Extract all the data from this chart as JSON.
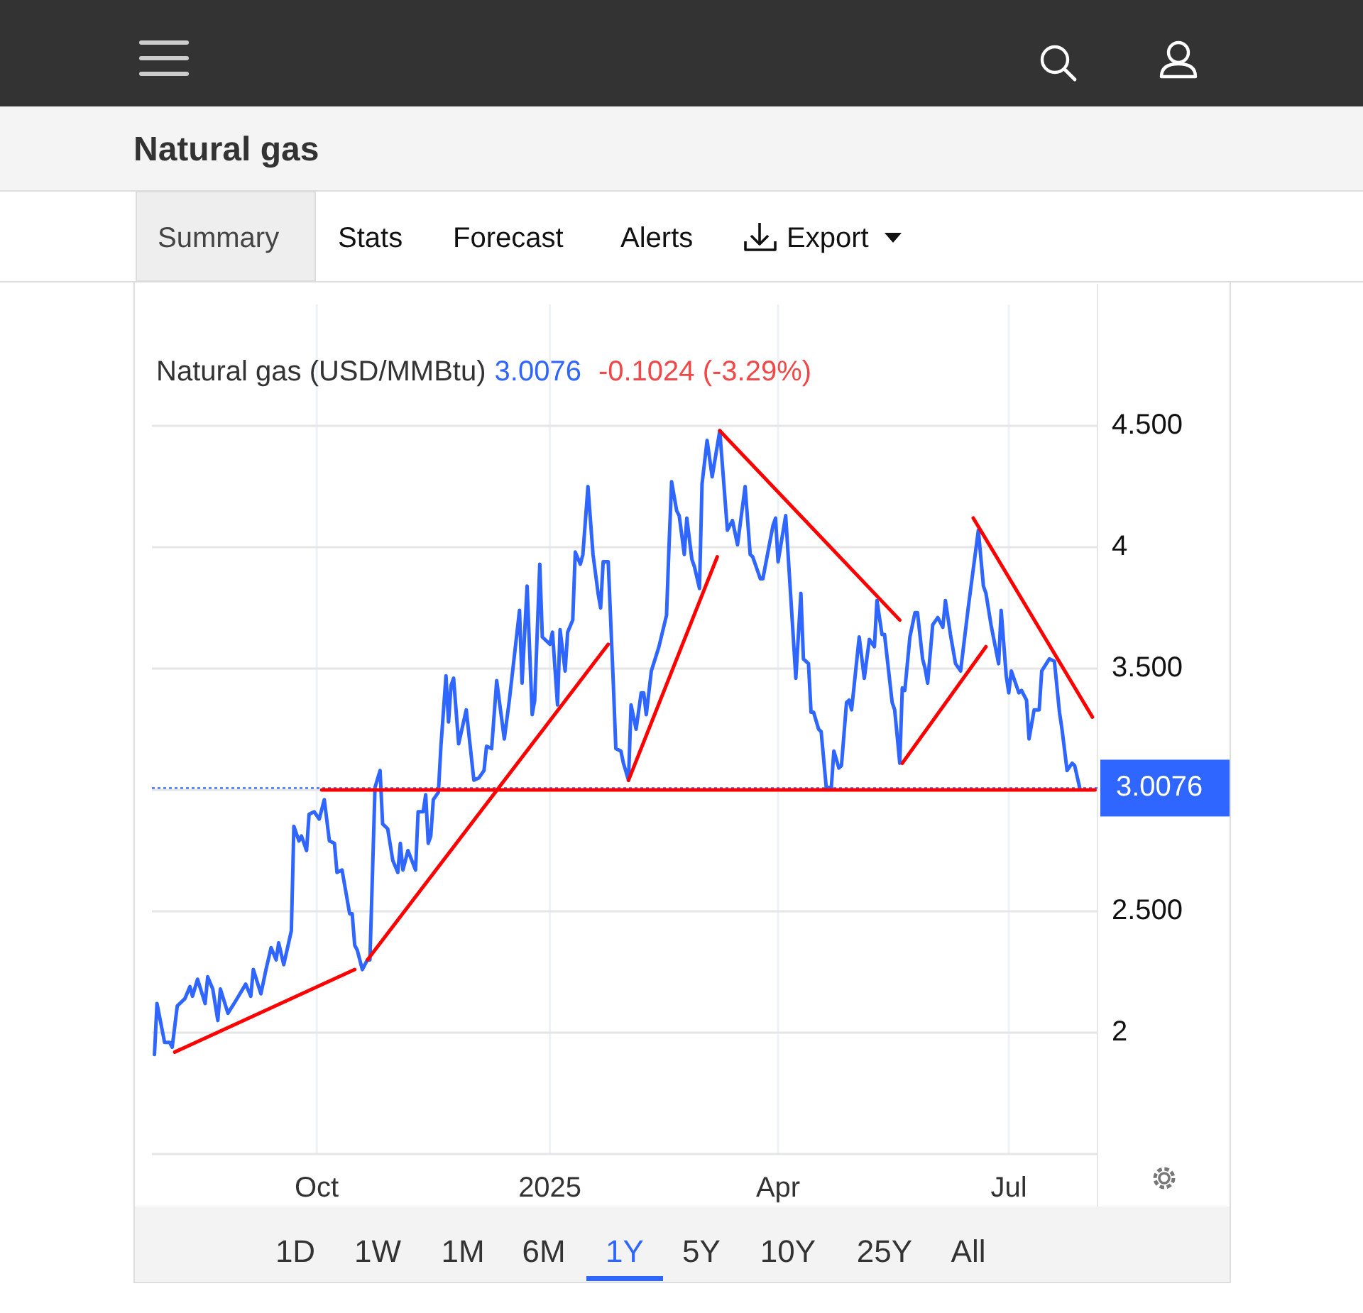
{
  "chart_data": {
    "type": "line",
    "title": "Natural gas",
    "xlim": [
      "2024-07-28",
      "2025-08-05"
    ],
    "xticks": [
      {
        "value": "2024-10-01",
        "label": "Oct"
      },
      {
        "value": "2025-01-01",
        "label": "2025"
      },
      {
        "value": "2025-04-01",
        "label": "Apr"
      },
      {
        "value": "2025-07-01",
        "label": "Jul"
      }
    ],
    "ylim": [
      1.5,
      5
    ],
    "yticks": [
      2,
      {
        "value": 2.5,
        "label": "2.500"
      },
      {
        "value": 3,
        "label": null
      },
      {
        "value": 3.5,
        "label": "3.500"
      },
      4,
      {
        "value": 4.5,
        "label": "4.500"
      }
    ],
    "subtitle": "Natural gas (USD/MMBtu)",
    "grid": true,
    "line_style": "solid",
    "ref_lines": [
      {
        "axis": "y",
        "value": 3.0076,
        "label": "3.0076",
        "color": "#2e66ff",
        "line_style": "dotted"
      }
    ],
    "annotations": [
      "3.0076",
      "-0.1024 (-3.29%)",
      "Summary",
      "Stats",
      "Forecast",
      "Alerts",
      "Export",
      "1D",
      "1W",
      "1M",
      "6M",
      "1Y",
      "5Y",
      "10Y",
      "25Y",
      "All"
    ],
    "series": [
      {
        "color": "#2e66ff",
        "x": [
          "2024-07-29",
          "2024-07-30",
          "2024-08-02",
          "2024-08-04",
          "2024-08-05",
          "2024-08-07",
          "2024-08-10",
          "2024-08-12",
          "2024-08-13",
          "2024-08-15",
          "2024-08-18",
          "2024-08-19",
          "2024-08-21",
          "2024-08-23",
          "2024-08-24",
          "2024-08-27",
          "2024-08-30",
          "2024-09-03",
          "2024-09-05",
          "2024-09-06",
          "2024-09-09",
          "2024-09-11",
          "2024-09-13",
          "2024-09-15",
          "2024-09-16",
          "2024-09-18",
          "2024-09-21",
          "2024-09-22",
          "2024-09-24",
          "2024-09-25",
          "2024-09-27",
          "2024-09-28",
          "2024-09-30",
          "2024-10-02",
          "2024-10-04",
          "2024-10-06",
          "2024-10-08",
          "2024-10-09",
          "2024-10-11",
          "2024-10-14",
          "2024-10-15",
          "2024-10-16",
          "2024-10-17",
          "2024-10-19",
          "2024-10-21",
          "2024-10-22",
          "2024-10-24",
          "2024-10-26",
          "2024-10-27",
          "2024-10-29",
          "2024-10-31",
          "2024-11-02",
          "2024-11-03",
          "2024-11-04",
          "2024-11-06",
          "2024-11-09",
          "2024-11-10",
          "2024-11-12",
          "2024-11-13",
          "2024-11-14",
          "2024-11-15",
          "2024-11-16",
          "2024-11-18",
          "2024-11-19",
          "2024-11-21",
          "2024-11-22",
          "2024-11-23",
          "2024-11-24",
          "2024-11-26",
          "2024-11-29",
          "2024-12-02",
          "2024-12-04",
          "2024-12-06",
          "2024-12-07",
          "2024-12-09",
          "2024-12-11",
          "2024-12-14",
          "2024-12-16",
          "2024-12-20",
          "2024-12-21",
          "2024-12-23",
          "2024-12-25",
          "2024-12-26",
          "2024-12-28",
          "2024-12-29",
          "2025-01-01",
          "2025-01-02",
          "2025-01-04",
          "2025-01-05",
          "2025-01-07",
          "2025-01-08",
          "2025-01-10",
          "2025-01-11",
          "2025-01-13",
          "2025-01-14",
          "2025-01-16",
          "2025-01-18",
          "2025-01-20",
          "2025-01-21",
          "2025-01-22",
          "2025-01-24",
          "2025-01-26",
          "2025-01-27",
          "2025-01-29",
          "2025-01-30",
          "2025-02-01",
          "2025-02-02",
          "2025-02-04",
          "2025-02-06",
          "2025-02-07",
          "2025-02-08",
          "2025-02-10",
          "2025-02-13",
          "2025-02-16",
          "2025-02-17",
          "2025-02-18",
          "2025-02-20",
          "2025-02-21",
          "2025-02-23",
          "2025-02-24",
          "2025-02-26",
          "2025-02-27",
          "2025-03-01",
          "2025-03-02",
          "2025-03-04",
          "2025-03-06",
          "2025-03-09",
          "2025-03-12",
          "2025-03-14",
          "2025-03-16",
          "2025-03-19",
          "2025-03-21",
          "2025-03-22",
          "2025-03-25",
          "2025-03-26",
          "2025-03-30",
          "2025-03-31",
          "2025-04-01",
          "2025-04-04",
          "2025-04-08",
          "2025-04-10",
          "2025-04-11",
          "2025-04-13",
          "2025-04-14",
          "2025-04-15",
          "2025-04-17",
          "2025-04-18",
          "2025-04-20",
          "2025-04-22",
          "2025-04-23",
          "2025-04-25",
          "2025-04-26",
          "2025-04-28",
          "2025-04-29",
          "2025-04-30",
          "2025-05-03",
          "2025-05-05",
          "2025-05-07",
          "2025-05-09",
          "2025-05-10",
          "2025-05-12",
          "2025-05-13",
          "2025-05-16",
          "2025-05-17",
          "2025-05-19",
          "2025-05-20",
          "2025-05-21",
          "2025-05-23",
          "2025-05-25",
          "2025-05-26",
          "2025-05-28",
          "2025-05-29",
          "2025-05-30",
          "2025-06-01",
          "2025-06-03",
          "2025-06-05",
          "2025-06-06",
          "2025-06-08",
          "2025-06-10",
          "2025-06-12",
          "2025-06-15",
          "2025-06-17",
          "2025-06-19",
          "2025-06-21",
          "2025-06-22",
          "2025-06-24",
          "2025-06-27",
          "2025-06-28",
          "2025-06-30",
          "2025-07-01",
          "2025-07-02",
          "2025-07-05",
          "2025-07-06",
          "2025-07-08",
          "2025-07-09",
          "2025-07-11",
          "2025-07-13",
          "2025-07-14",
          "2025-07-17",
          "2025-07-19",
          "2025-07-21",
          "2025-07-22",
          "2025-07-24",
          "2025-07-26",
          "2025-07-27",
          "2025-07-29"
        ],
        "values": [
          1.91,
          2.12,
          1.96,
          1.96,
          1.94,
          2.11,
          2.14,
          2.19,
          2.15,
          2.22,
          2.12,
          2.23,
          2.18,
          2.05,
          2.18,
          2.08,
          2.13,
          2.2,
          2.15,
          2.26,
          2.16,
          2.26,
          2.35,
          2.3,
          2.37,
          2.28,
          2.42,
          2.85,
          2.79,
          2.81,
          2.75,
          2.9,
          2.91,
          2.88,
          2.96,
          2.79,
          2.78,
          2.66,
          2.67,
          2.49,
          2.49,
          2.36,
          2.34,
          2.26,
          2.3,
          2.3,
          3.01,
          3.08,
          2.86,
          2.84,
          2.71,
          2.66,
          2.78,
          2.67,
          2.75,
          2.67,
          2.91,
          2.91,
          2.98,
          2.78,
          2.81,
          2.96,
          2.99,
          3.18,
          3.47,
          3.28,
          3.43,
          3.46,
          3.19,
          3.33,
          3.04,
          3.05,
          3.08,
          3.18,
          3.17,
          3.45,
          3.21,
          3.37,
          3.74,
          3.44,
          3.84,
          3.31,
          3.37,
          3.93,
          3.63,
          3.6,
          3.65,
          3.35,
          3.66,
          3.49,
          3.65,
          3.7,
          3.98,
          3.93,
          3.97,
          4.25,
          3.97,
          3.81,
          3.75,
          3.94,
          3.94,
          3.44,
          3.17,
          3.16,
          3.11,
          3.04,
          3.35,
          3.25,
          3.4,
          3.4,
          3.31,
          3.49,
          3.59,
          3.72,
          4.01,
          4.27,
          4.15,
          4.13,
          3.97,
          4.12,
          3.95,
          3.92,
          3.83,
          4.26,
          4.44,
          4.29,
          4.48,
          4.07,
          4.11,
          4.01,
          4.25,
          3.97,
          3.96,
          3.87,
          3.87,
          4.09,
          4.12,
          3.94,
          4.13,
          3.46,
          3.81,
          3.54,
          3.52,
          3.32,
          3.32,
          3.25,
          3.24,
          3.01,
          3.01,
          3.16,
          3.09,
          3.1,
          3.36,
          3.37,
          3.33,
          3.63,
          3.46,
          3.62,
          3.59,
          3.78,
          3.64,
          3.64,
          3.36,
          3.33,
          3.11,
          3.42,
          3.41,
          3.63,
          3.73,
          3.73,
          3.54,
          3.5,
          3.44,
          3.68,
          3.71,
          3.67,
          3.78,
          3.64,
          3.52,
          3.49,
          3.75,
          3.91,
          4.07,
          3.84,
          3.81,
          3.68,
          3.52,
          3.74,
          3.47,
          3.4,
          3.49,
          3.4,
          3.41,
          3.37,
          3.21,
          3.33,
          3.33,
          3.49,
          3.54,
          3.53,
          3.32,
          3.25,
          3.08,
          3.11,
          3.1,
          3.0076
        ]
      },
      {
        "type": "line",
        "color": "#ff0000",
        "x": [
          "2024-08-06",
          "2024-10-16"
        ],
        "values": [
          1.92,
          2.26
        ]
      },
      {
        "type": "line",
        "color": "#ff0000",
        "x": [
          "2024-10-21",
          "2025-01-24"
        ],
        "values": [
          2.3,
          3.6
        ]
      },
      {
        "type": "line",
        "color": "#ff0000",
        "x": [
          "2025-02-01",
          "2025-03-08"
        ],
        "values": [
          3.04,
          3.96
        ]
      },
      {
        "type": "line",
        "color": "#ff0000",
        "x": [
          "2025-03-09",
          "2025-05-19"
        ],
        "values": [
          4.48,
          3.7
        ]
      },
      {
        "type": "line",
        "color": "#ff0000",
        "x": [
          "2025-05-20",
          "2025-06-22"
        ],
        "values": [
          3.11,
          3.59
        ]
      },
      {
        "type": "line",
        "color": "#ff0000",
        "x": [
          "2025-06-17",
          "2025-08-03"
        ],
        "values": [
          4.12,
          3.3
        ]
      },
      {
        "type": "line",
        "color": "#ff0000",
        "x": [
          "2024-10-03",
          "2025-08-04"
        ],
        "values": [
          3.0,
          3.0
        ]
      }
    ]
  }
}
